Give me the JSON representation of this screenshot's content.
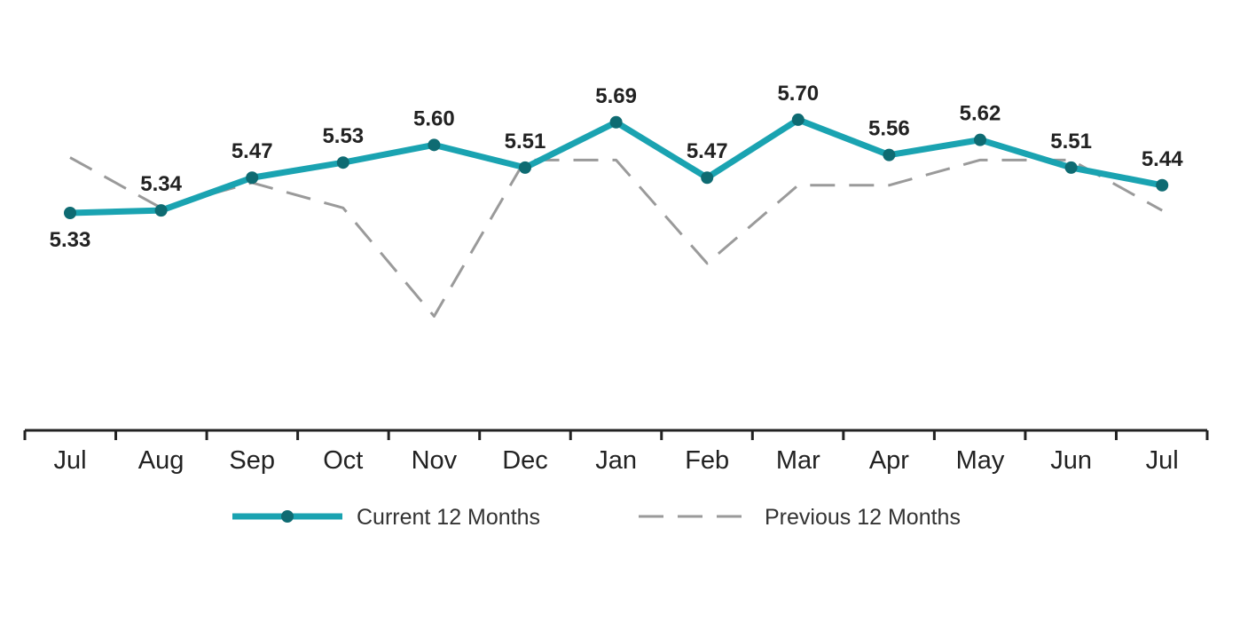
{
  "chart_data": {
    "type": "line",
    "categories": [
      "Jul",
      "Aug",
      "Sep",
      "Oct",
      "Nov",
      "Dec",
      "Jan",
      "Feb",
      "Mar",
      "Apr",
      "May",
      "Jun",
      "Jul"
    ],
    "series": [
      {
        "name": "Current 12 Months",
        "values": [
          5.33,
          5.34,
          5.47,
          5.53,
          5.6,
          5.51,
          5.69,
          5.47,
          5.7,
          5.56,
          5.62,
          5.51,
          5.44
        ],
        "color": "#1aa3b1",
        "marker_color": "#0e6b72",
        "style": "solid",
        "labels": [
          "5.33",
          "5.34",
          "5.47",
          "5.53",
          "5.60",
          "5.51",
          "5.69",
          "5.47",
          "5.70",
          "5.56",
          "5.62",
          "5.51",
          "5.44"
        ]
      },
      {
        "name": "Previous 12 Months",
        "values": [
          5.55,
          5.35,
          5.45,
          5.35,
          4.92,
          5.54,
          5.54,
          5.13,
          5.44,
          5.44,
          5.54,
          5.54,
          5.34
        ],
        "color": "#9a9a9a",
        "style": "dashed"
      }
    ],
    "ylim": [
      4.5,
      6.0
    ],
    "grid": false,
    "legend_position": "bottom"
  }
}
